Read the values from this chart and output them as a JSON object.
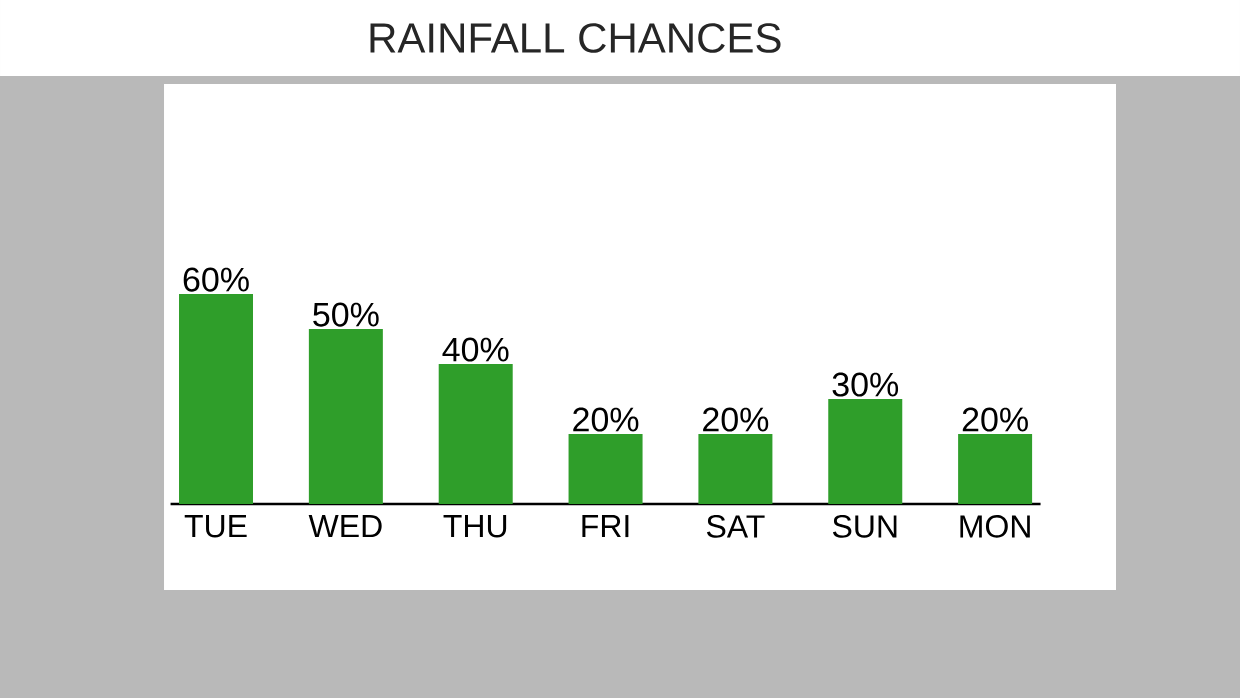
{
  "chart_data": {
    "type": "bar",
    "title": "RAINFALL CHANCES",
    "categories": [
      "TUE",
      "WED",
      "THU",
      "FRI",
      "SAT",
      "SUN",
      "MON"
    ],
    "values": [
      60,
      50,
      40,
      20,
      20,
      30,
      20
    ],
    "value_labels": [
      "60%",
      "50%",
      "40%",
      "20%",
      "20%",
      "30%",
      "20%"
    ],
    "color": "#2f9e2a"
  }
}
